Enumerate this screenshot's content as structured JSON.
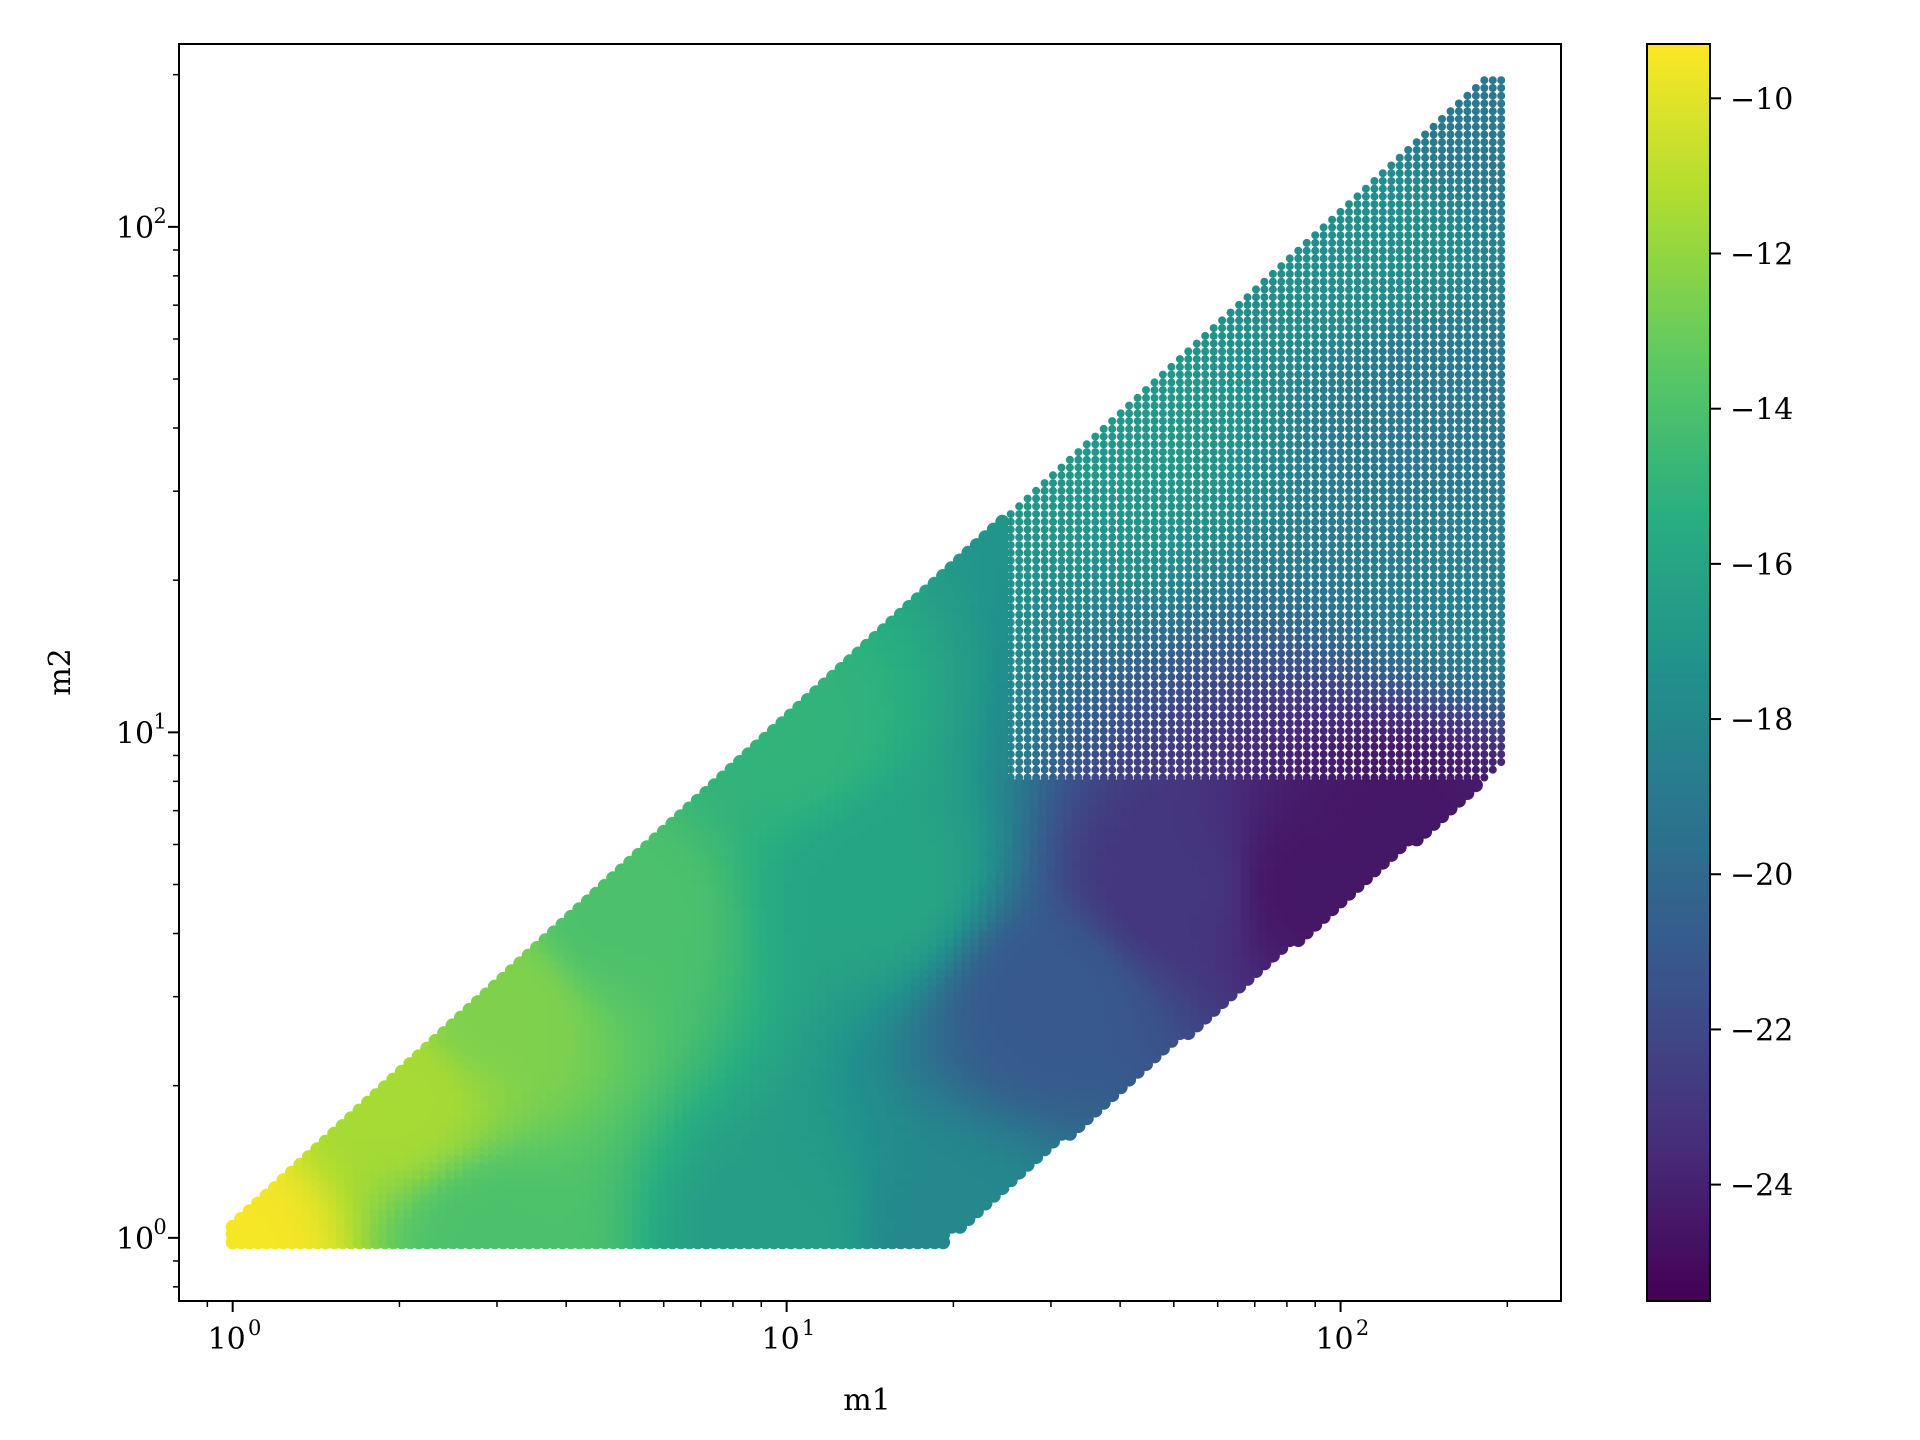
{
  "chart_data": {
    "type": "scatter",
    "title": "",
    "xlabel": "m1",
    "ylabel": "m2",
    "xscale": "log",
    "yscale": "log",
    "xlim": [
      0.8,
      250
    ],
    "ylim": [
      0.75,
      230
    ],
    "x_ticks": [
      {
        "value": 1,
        "base": "10",
        "exp": "0"
      },
      {
        "value": 10,
        "base": "10",
        "exp": "1"
      },
      {
        "value": 100,
        "base": "10",
        "exp": "2"
      }
    ],
    "y_ticks": [
      {
        "value": 1,
        "base": "10",
        "exp": "0"
      },
      {
        "value": 10,
        "base": "10",
        "exp": "1"
      },
      {
        "value": 100,
        "base": "10",
        "exp": "2"
      }
    ],
    "colorbar": {
      "colormap": "viridis",
      "min": -25.5,
      "max": -9.3,
      "ticks": [
        "−10",
        "−12",
        "−14",
        "−16",
        "−18",
        "−20",
        "−22",
        "−24"
      ],
      "tick_values": [
        -10,
        -12,
        -14,
        -16,
        -18,
        -20,
        -22,
        -24
      ]
    },
    "region": {
      "description_points_m1_m2": [
        [
          1.0,
          1.0
        ],
        [
          10.5,
          11.2
        ],
        [
          180,
          190
        ],
        [
          195,
          190
        ],
        [
          195,
          8.5
        ],
        [
          19.5,
          1.0
        ]
      ],
      "value_trend": "yellow (~-9.5) near m1=m2=1, green (~-14) along the diagonal up to m1~10, teal (~-17) in the middle, dark purple (~-24) near m1~80-130, m2~4-10",
      "sample_points": [
        {
          "m1": 1.0,
          "m2": 1.0,
          "v": -9.5
        },
        {
          "m1": 2.0,
          "m2": 1.9,
          "v": -11.5
        },
        {
          "m1": 3.0,
          "m2": 2.9,
          "v": -12.5
        },
        {
          "m1": 5.0,
          "m2": 4.5,
          "v": -14.0
        },
        {
          "m1": 3.0,
          "m2": 1.0,
          "v": -14.0
        },
        {
          "m1": 10.0,
          "m2": 1.0,
          "v": -16.5
        },
        {
          "m1": 10.0,
          "m2": 10.0,
          "v": -15.0
        },
        {
          "m1": 15.0,
          "m2": 5.0,
          "v": -16.0
        },
        {
          "m1": 19.5,
          "m2": 1.0,
          "v": -18.0
        },
        {
          "m1": 30.0,
          "m2": 3.0,
          "v": -21.0
        },
        {
          "m1": 50.0,
          "m2": 5.0,
          "v": -23.0
        },
        {
          "m1": 90.0,
          "m2": 5.0,
          "v": -24.5
        },
        {
          "m1": 130.0,
          "m2": 6.5,
          "v": -24.5
        },
        {
          "m1": 40.0,
          "m2": 40.0,
          "v": -17.0
        },
        {
          "m1": 100.0,
          "m2": 100.0,
          "v": -17.5
        },
        {
          "m1": 180.0,
          "m2": 180.0,
          "v": -19.0
        },
        {
          "m1": 180.0,
          "m2": 20.0,
          "v": -18.5
        },
        {
          "m1": 150.0,
          "m2": 40.0,
          "v": -19.0
        }
      ]
    }
  }
}
